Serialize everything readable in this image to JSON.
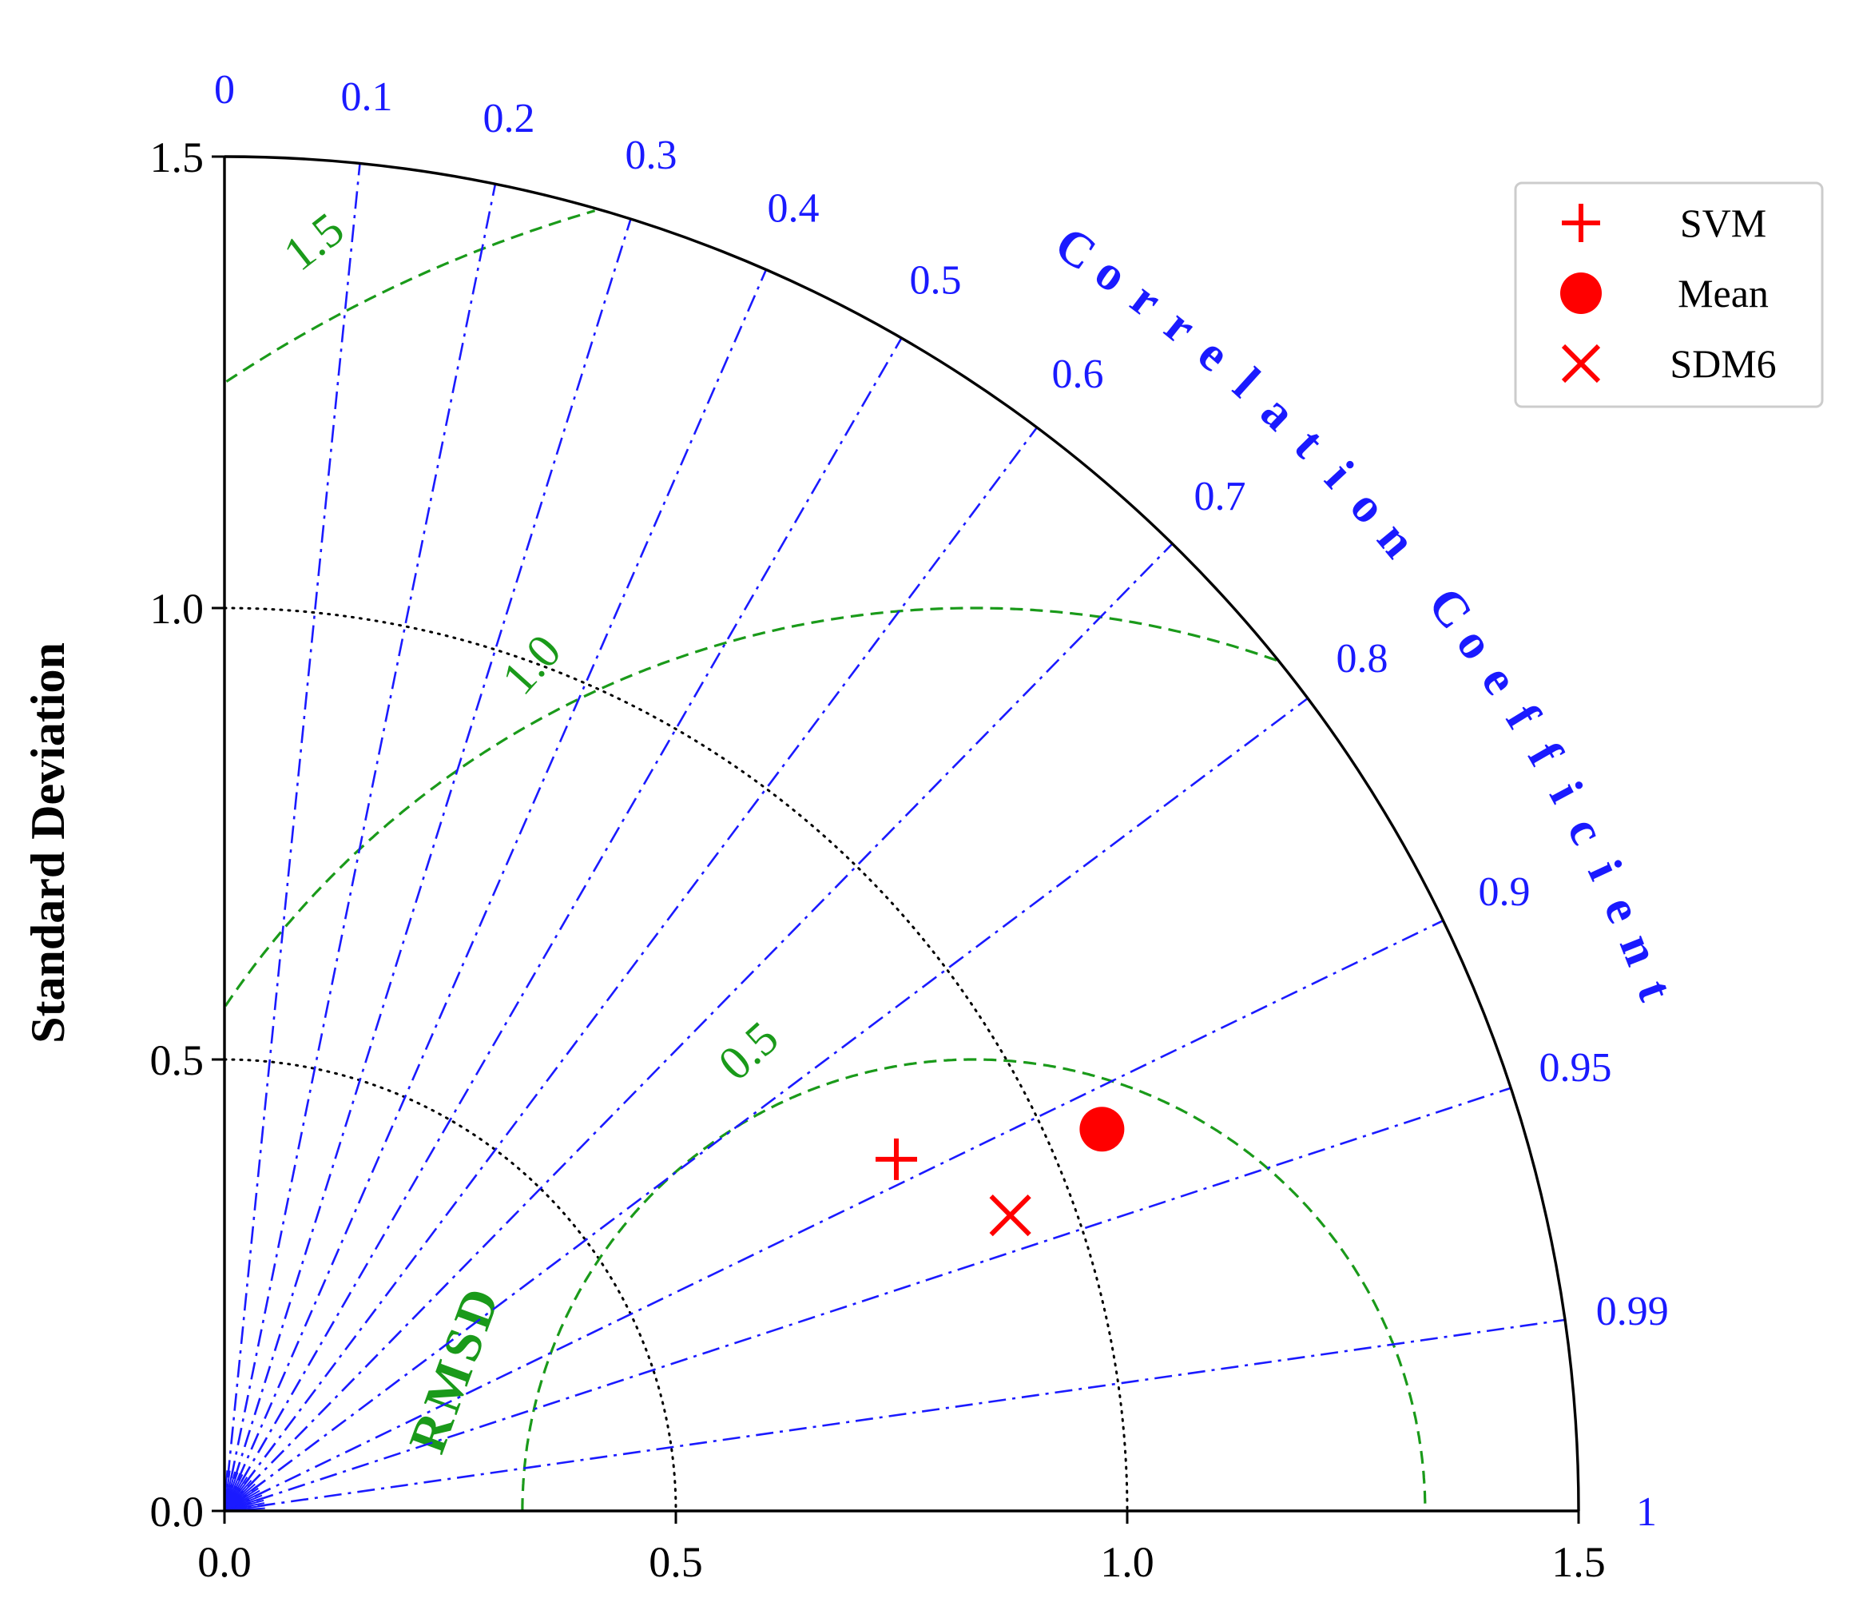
{
  "chart_data": {
    "type": "taylor-diagram",
    "axis_title": "Standard Deviation",
    "std_range": [
      0,
      1.5
    ],
    "std_ticks": [
      "0.0",
      "0.5",
      "1.0",
      "1.5"
    ],
    "std_tick_values": [
      0,
      0.5,
      1.0,
      1.5
    ],
    "std_gridlines": [
      0.5,
      1.0
    ],
    "correlation_title": "Correlation Coefficient",
    "correlation_ticks": [
      "0",
      "0.1",
      "0.2",
      "0.3",
      "0.4",
      "0.5",
      "0.6",
      "0.7",
      "0.8",
      "0.9",
      "0.95",
      "0.99",
      "1"
    ],
    "correlation_values": [
      0,
      0.1,
      0.2,
      0.3,
      0.4,
      0.5,
      0.6,
      0.7,
      0.8,
      0.9,
      0.95,
      0.99,
      1
    ],
    "rmsd_title": "RMSD",
    "reference_std": 0.83,
    "rmsd_contours": [
      0.5,
      1.0,
      1.5
    ],
    "rmsd_labels": [
      "0.5",
      "1.0",
      "1.5"
    ],
    "legend_placement": "top-right",
    "series": [
      {
        "name": "SVM",
        "marker": "plus",
        "std": 0.84,
        "correlation": 0.886,
        "color": "#ff0000"
      },
      {
        "name": "Mean",
        "marker": "circle",
        "std": 1.06,
        "correlation": 0.917,
        "color": "#ff0000"
      },
      {
        "name": "SDM6",
        "marker": "x",
        "std": 0.93,
        "correlation": 0.936,
        "color": "#ff0000"
      }
    ],
    "colors": {
      "correlation": "#1a1aff",
      "rmsd": "#1a9a1a",
      "std_grid": "#000000",
      "markers": "#ff0000"
    }
  }
}
